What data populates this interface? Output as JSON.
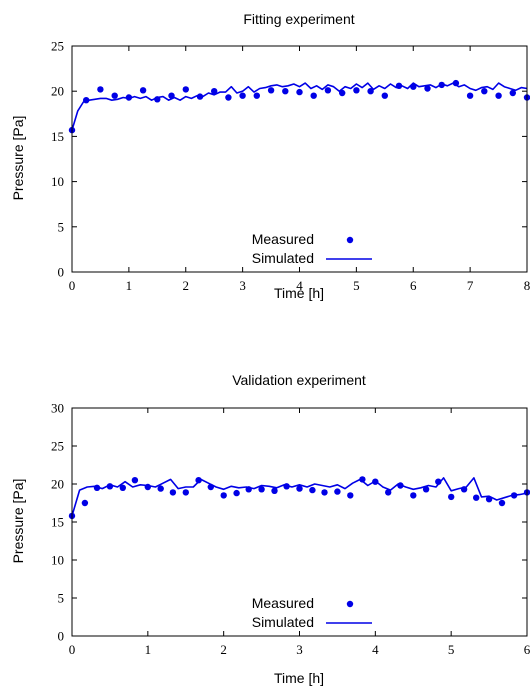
{
  "colors": {
    "series": "#0000e6",
    "axis": "#000000",
    "background": "#ffffff"
  },
  "chart_data": [
    {
      "type": "scatter",
      "title": "Fitting experiment",
      "xlabel": "Time [h]",
      "ylabel": "Pressure [Pa]",
      "xlim": [
        0,
        8
      ],
      "ylim": [
        0,
        25
      ],
      "xticks": [
        "0",
        "1",
        "2",
        "3",
        "4",
        "5",
        "6",
        "7",
        "8"
      ],
      "yticks": [
        "0",
        "5",
        "10",
        "15",
        "20",
        "25"
      ],
      "legend": {
        "position": "bottom-center",
        "entries": [
          "Measured",
          "Simulated"
        ]
      },
      "series": [
        {
          "name": "Measured",
          "style": "points",
          "x": [
            0,
            0.25,
            0.5,
            0.75,
            1.0,
            1.25,
            1.5,
            1.75,
            2.0,
            2.25,
            2.5,
            2.75,
            3.0,
            3.25,
            3.5,
            3.75,
            4.0,
            4.25,
            4.5,
            4.75,
            5.0,
            5.25,
            5.5,
            5.75,
            6.0,
            6.25,
            6.5,
            6.75,
            7.0,
            7.25,
            7.5,
            7.75,
            8.0
          ],
          "y": [
            15.7,
            19.0,
            20.2,
            19.5,
            19.3,
            20.1,
            19.1,
            19.5,
            20.2,
            19.4,
            20.0,
            19.3,
            19.5,
            19.5,
            20.1,
            20.0,
            19.9,
            19.5,
            20.1,
            19.8,
            20.1,
            20.0,
            19.5,
            20.6,
            20.5,
            20.3,
            20.7,
            20.9,
            19.5,
            20.0,
            19.5,
            19.8,
            19.3
          ]
        },
        {
          "name": "Simulated",
          "style": "line",
          "x": [
            0,
            0.1,
            0.2,
            0.3,
            0.4,
            0.5,
            0.6,
            0.7,
            0.8,
            0.9,
            1.0,
            1.1,
            1.2,
            1.3,
            1.4,
            1.5,
            1.6,
            1.7,
            1.8,
            1.9,
            2.0,
            2.1,
            2.2,
            2.3,
            2.4,
            2.5,
            2.6,
            2.7,
            2.8,
            2.9,
            3.0,
            3.1,
            3.2,
            3.3,
            3.4,
            3.5,
            3.6,
            3.7,
            3.8,
            3.9,
            4.0,
            4.1,
            4.2,
            4.3,
            4.4,
            4.5,
            4.6,
            4.7,
            4.8,
            4.9,
            5.0,
            5.1,
            5.2,
            5.3,
            5.4,
            5.5,
            5.6,
            5.7,
            5.8,
            5.9,
            6.0,
            6.1,
            6.2,
            6.3,
            6.4,
            6.5,
            6.6,
            6.7,
            6.8,
            6.9,
            7.0,
            7.1,
            7.2,
            7.3,
            7.4,
            7.5,
            7.6,
            7.7,
            7.8,
            7.9,
            8.0
          ],
          "y": [
            15.7,
            17.8,
            18.8,
            19.0,
            19.1,
            19.2,
            19.2,
            19.0,
            19.1,
            19.3,
            19.2,
            19.4,
            19.2,
            19.4,
            19.0,
            19.3,
            19.4,
            19.0,
            19.3,
            19.0,
            19.4,
            19.2,
            19.5,
            19.4,
            19.8,
            19.6,
            19.9,
            19.9,
            20.5,
            19.8,
            20.0,
            20.5,
            19.9,
            20.3,
            20.4,
            20.6,
            20.7,
            20.5,
            20.6,
            20.8,
            20.5,
            20.9,
            20.3,
            20.6,
            20.2,
            20.7,
            20.5,
            20.0,
            20.5,
            20.3,
            20.8,
            20.4,
            20.9,
            20.2,
            20.6,
            20.3,
            20.8,
            20.4,
            20.6,
            20.3,
            20.9,
            20.5,
            20.6,
            20.7,
            20.4,
            20.8,
            20.6,
            20.9,
            20.5,
            20.7,
            20.3,
            20.1,
            20.4,
            20.5,
            20.2,
            20.9,
            20.5,
            20.3,
            20.1,
            20.4,
            20.3
          ]
        }
      ]
    },
    {
      "type": "scatter",
      "title": "Validation experiment",
      "xlabel": "Time [h]",
      "ylabel": "Pressure [Pa]",
      "xlim": [
        0,
        6
      ],
      "ylim": [
        0,
        30
      ],
      "xticks": [
        "0",
        "1",
        "2",
        "3",
        "4",
        "5",
        "6"
      ],
      "yticks": [
        "0",
        "5",
        "10",
        "15",
        "20",
        "25",
        "30"
      ],
      "legend": {
        "position": "bottom-center",
        "entries": [
          "Measured",
          "Simulated"
        ]
      },
      "series": [
        {
          "name": "Measured",
          "style": "points",
          "x": [
            0,
            0.17,
            0.33,
            0.5,
            0.67,
            0.83,
            1.0,
            1.17,
            1.33,
            1.5,
            1.67,
            1.83,
            2.0,
            2.17,
            2.33,
            2.5,
            2.67,
            2.83,
            3.0,
            3.17,
            3.33,
            3.5,
            3.67,
            3.83,
            4.0,
            4.17,
            4.33,
            4.5,
            4.67,
            4.83,
            5.0,
            5.17,
            5.33,
            5.5,
            5.67,
            5.83,
            6.0
          ],
          "y": [
            15.8,
            17.5,
            19.5,
            19.7,
            19.5,
            20.5,
            19.6,
            19.4,
            18.9,
            18.9,
            20.5,
            19.6,
            18.5,
            18.8,
            19.3,
            19.3,
            19.1,
            19.7,
            19.4,
            19.2,
            18.9,
            19.0,
            18.5,
            20.6,
            20.3,
            18.9,
            19.8,
            18.5,
            19.3,
            20.3,
            18.3,
            19.3,
            18.2,
            18.0,
            17.5,
            18.5,
            18.9
          ]
        },
        {
          "name": "Simulated",
          "style": "line",
          "x": [
            0,
            0.1,
            0.2,
            0.3,
            0.4,
            0.5,
            0.6,
            0.7,
            0.8,
            0.9,
            1.0,
            1.1,
            1.2,
            1.3,
            1.4,
            1.5,
            1.6,
            1.7,
            1.8,
            1.9,
            2.0,
            2.1,
            2.2,
            2.3,
            2.4,
            2.5,
            2.6,
            2.7,
            2.8,
            2.9,
            3.0,
            3.1,
            3.2,
            3.3,
            3.4,
            3.5,
            3.6,
            3.7,
            3.8,
            3.9,
            4.0,
            4.1,
            4.2,
            4.3,
            4.4,
            4.5,
            4.6,
            4.7,
            4.8,
            4.9,
            5.0,
            5.1,
            5.2,
            5.3,
            5.4,
            5.5,
            5.6,
            5.7,
            5.8,
            5.9,
            6.0
          ],
          "y": [
            15.8,
            19.2,
            19.6,
            19.7,
            19.4,
            19.9,
            19.6,
            20.3,
            19.6,
            19.9,
            19.8,
            19.6,
            20.1,
            20.6,
            19.4,
            19.6,
            19.6,
            20.6,
            20.1,
            19.6,
            19.3,
            19.7,
            19.5,
            19.6,
            19.4,
            19.8,
            19.7,
            19.5,
            19.9,
            19.6,
            19.9,
            19.6,
            20.0,
            19.8,
            19.6,
            19.9,
            19.4,
            20.1,
            20.6,
            19.8,
            20.4,
            19.6,
            19.2,
            20.0,
            19.6,
            19.3,
            19.5,
            19.8,
            19.6,
            20.8,
            19.1,
            19.4,
            19.6,
            20.8,
            18.3,
            18.4,
            17.9,
            18.2,
            18.5,
            18.6,
            18.8
          ]
        }
      ]
    }
  ]
}
